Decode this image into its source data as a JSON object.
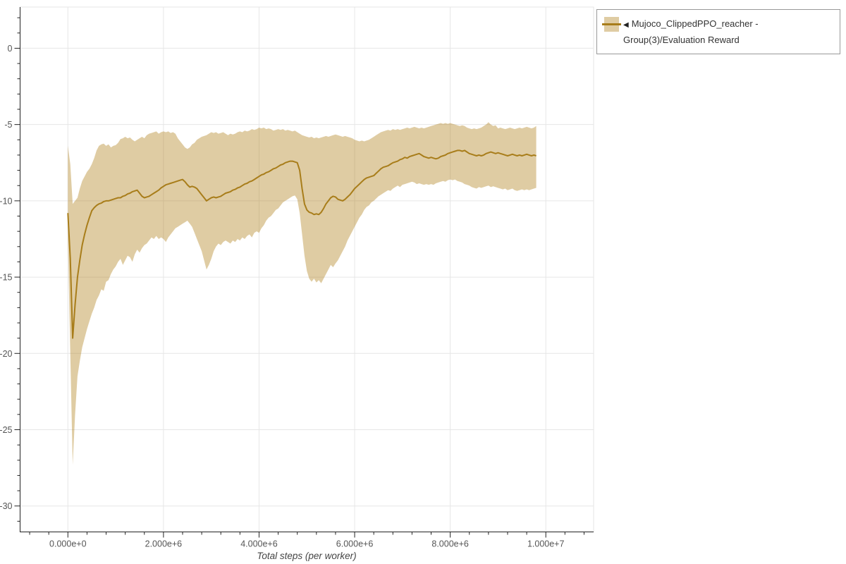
{
  "legend": {
    "toggle_icon": "◀",
    "label": "Mujoco_ClippedPPO_reacher - Group(3)/Evaluation Reward",
    "border_color": "#999999",
    "background": "#ffffff",
    "text_color": "#333333"
  },
  "chart_data": {
    "type": "line",
    "title": "",
    "xlabel": "Total steps (per worker)",
    "ylabel": "",
    "grid": true,
    "legend_position": "top-right-outside",
    "colors": {
      "background": "#ffffff",
      "grid": "#e6e6e6",
      "outline": "#e6e6e6",
      "axis_line": "#222222",
      "tick_label": "#555555",
      "axis_title": "#444444"
    },
    "x_axis": {
      "range": [
        -1000000,
        11000000
      ],
      "major_ticks": [
        0,
        2000000,
        4000000,
        6000000,
        8000000,
        10000000
      ],
      "tick_labels": [
        "0.000e+0",
        "2.000e+6",
        "4.000e+6",
        "6.000e+6",
        "8.000e+6",
        "1.000e+7"
      ],
      "major_step": 2000000,
      "minor_step": 400000
    },
    "y_axis": {
      "range": [
        -31.7,
        2.7
      ],
      "major_ticks": [
        0,
        -5,
        -10,
        -15,
        -20,
        -25,
        -30
      ],
      "tick_labels": [
        "0",
        "-5",
        "-10",
        "-15",
        "-20",
        "-25",
        "-30"
      ],
      "minor_step": 1
    },
    "series": [
      {
        "name": "Mujoco_ClippedPPO_reacher - Group(3)/Evaluation Reward",
        "line_color": "#a87d1a",
        "band_color": "rgba(176,128,24,0.40)",
        "x_start": 0,
        "x_step": 50000,
        "mean": [
          -10.8,
          -13.8,
          -19.0,
          -16.8,
          -15.0,
          -13.9,
          -12.9,
          -12.2,
          -11.6,
          -11.1,
          -10.65,
          -10.45,
          -10.3,
          -10.2,
          -10.15,
          -10.05,
          -10.0,
          -10.0,
          -9.95,
          -9.9,
          -9.85,
          -9.8,
          -9.8,
          -9.7,
          -9.65,
          -9.55,
          -9.5,
          -9.4,
          -9.35,
          -9.3,
          -9.5,
          -9.7,
          -9.8,
          -9.75,
          -9.7,
          -9.6,
          -9.5,
          -9.4,
          -9.3,
          -9.15,
          -9.05,
          -8.95,
          -8.9,
          -8.85,
          -8.8,
          -8.75,
          -8.7,
          -8.65,
          -8.6,
          -8.75,
          -8.95,
          -9.1,
          -9.05,
          -9.1,
          -9.2,
          -9.4,
          -9.6,
          -9.8,
          -10.0,
          -9.9,
          -9.8,
          -9.75,
          -9.8,
          -9.75,
          -9.7,
          -9.6,
          -9.5,
          -9.45,
          -9.4,
          -9.3,
          -9.25,
          -9.15,
          -9.1,
          -9.0,
          -8.9,
          -8.85,
          -8.75,
          -8.7,
          -8.6,
          -8.5,
          -8.4,
          -8.3,
          -8.25,
          -8.15,
          -8.1,
          -8.0,
          -7.9,
          -7.85,
          -7.75,
          -7.65,
          -7.6,
          -7.5,
          -7.45,
          -7.4,
          -7.4,
          -7.45,
          -7.5,
          -8.0,
          -9.2,
          -10.2,
          -10.6,
          -10.75,
          -10.8,
          -10.9,
          -10.85,
          -10.9,
          -10.75,
          -10.5,
          -10.2,
          -10.0,
          -9.8,
          -9.7,
          -9.75,
          -9.9,
          -9.95,
          -10.0,
          -9.9,
          -9.75,
          -9.6,
          -9.4,
          -9.2,
          -9.05,
          -8.9,
          -8.75,
          -8.6,
          -8.5,
          -8.45,
          -8.4,
          -8.35,
          -8.2,
          -8.05,
          -7.9,
          -7.8,
          -7.75,
          -7.7,
          -7.6,
          -7.5,
          -7.45,
          -7.4,
          -7.3,
          -7.25,
          -7.15,
          -7.2,
          -7.1,
          -7.05,
          -7.0,
          -6.95,
          -6.9,
          -7.0,
          -7.1,
          -7.15,
          -7.2,
          -7.15,
          -7.2,
          -7.25,
          -7.2,
          -7.1,
          -7.05,
          -7.0,
          -6.9,
          -6.85,
          -6.8,
          -6.75,
          -6.7,
          -6.7,
          -6.75,
          -6.7,
          -6.8,
          -6.9,
          -6.95,
          -7.0,
          -7.05,
          -7.0,
          -7.05,
          -7.0,
          -6.9,
          -6.85,
          -6.8,
          -6.85,
          -6.9,
          -6.85,
          -6.9,
          -6.95,
          -7.0,
          -7.05,
          -7.0,
          -6.95,
          -7.0,
          -7.05,
          -7.0,
          -7.05,
          -7.0,
          -6.95,
          -7.0,
          -7.05,
          -7.0,
          -7.05
        ],
        "upper": [
          -6.4,
          -7.6,
          -10.2,
          -10.0,
          -9.8,
          -9.2,
          -8.7,
          -8.4,
          -8.1,
          -7.9,
          -7.6,
          -7.2,
          -6.7,
          -6.4,
          -6.3,
          -6.25,
          -6.4,
          -6.3,
          -6.5,
          -6.4,
          -6.35,
          -6.2,
          -5.95,
          -5.9,
          -5.8,
          -5.9,
          -5.85,
          -6.0,
          -6.1,
          -6.0,
          -5.9,
          -5.8,
          -5.9,
          -5.7,
          -5.6,
          -5.55,
          -5.5,
          -5.45,
          -5.6,
          -5.5,
          -5.45,
          -5.5,
          -5.45,
          -5.55,
          -5.5,
          -5.6,
          -5.9,
          -6.1,
          -6.3,
          -6.5,
          -6.6,
          -6.5,
          -6.3,
          -6.2,
          -6.0,
          -5.9,
          -5.8,
          -5.75,
          -5.7,
          -5.6,
          -5.5,
          -5.55,
          -5.5,
          -5.6,
          -5.55,
          -5.5,
          -5.6,
          -5.7,
          -5.6,
          -5.65,
          -5.6,
          -5.5,
          -5.45,
          -5.5,
          -5.4,
          -5.45,
          -5.4,
          -5.3,
          -5.35,
          -5.3,
          -5.2,
          -5.25,
          -5.2,
          -5.3,
          -5.25,
          -5.3,
          -5.4,
          -5.35,
          -5.3,
          -5.35,
          -5.3,
          -5.4,
          -5.35,
          -5.4,
          -5.45,
          -5.4,
          -5.5,
          -5.6,
          -5.7,
          -5.75,
          -5.8,
          -5.85,
          -5.8,
          -5.9,
          -5.85,
          -5.9,
          -5.85,
          -5.8,
          -5.75,
          -5.8,
          -5.75,
          -5.7,
          -5.65,
          -5.7,
          -5.75,
          -5.8,
          -5.75,
          -5.8,
          -5.85,
          -5.9,
          -6.0,
          -6.05,
          -6.1,
          -6.05,
          -6.1,
          -6.05,
          -6.0,
          -5.9,
          -5.8,
          -5.7,
          -5.6,
          -5.5,
          -5.45,
          -5.4,
          -5.35,
          -5.4,
          -5.3,
          -5.35,
          -5.3,
          -5.35,
          -5.3,
          -5.25,
          -5.2,
          -5.25,
          -5.2,
          -5.15,
          -5.2,
          -5.25,
          -5.2,
          -5.25,
          -5.2,
          -5.15,
          -5.1,
          -5.05,
          -5.0,
          -4.95,
          -4.9,
          -4.95,
          -4.9,
          -4.95,
          -4.9,
          -4.95,
          -5.0,
          -5.05,
          -5.1,
          -5.05,
          -5.1,
          -5.2,
          -5.25,
          -5.3,
          -5.25,
          -5.3,
          -5.25,
          -5.2,
          -5.1,
          -5.0,
          -4.85,
          -5.0,
          -5.1,
          -5.05,
          -5.25,
          -5.2,
          -5.25,
          -5.3,
          -5.25,
          -5.2,
          -5.25,
          -5.3,
          -5.25,
          -5.2,
          -5.25,
          -5.2,
          -5.15,
          -5.2,
          -5.25,
          -5.2,
          -5.1
        ],
        "lower": [
          -12.5,
          -20.0,
          -27.3,
          -24.0,
          -21.5,
          -20.5,
          -19.6,
          -19.0,
          -18.4,
          -17.9,
          -17.4,
          -17.0,
          -16.5,
          -16.2,
          -15.8,
          -15.9,
          -15.3,
          -15.2,
          -14.8,
          -14.5,
          -14.3,
          -14.0,
          -13.8,
          -14.2,
          -13.9,
          -13.6,
          -13.7,
          -14.0,
          -13.5,
          -13.2,
          -13.4,
          -13.1,
          -12.9,
          -12.8,
          -12.6,
          -12.4,
          -12.5,
          -12.3,
          -12.5,
          -12.4,
          -12.5,
          -12.7,
          -12.4,
          -12.2,
          -12.0,
          -11.8,
          -11.7,
          -11.6,
          -11.5,
          -11.4,
          -11.3,
          -11.5,
          -11.7,
          -12.1,
          -12.5,
          -12.9,
          -13.3,
          -13.9,
          -14.5,
          -14.2,
          -13.8,
          -13.3,
          -13.0,
          -12.8,
          -12.9,
          -12.7,
          -12.6,
          -12.7,
          -12.8,
          -12.6,
          -12.7,
          -12.5,
          -12.6,
          -12.4,
          -12.5,
          -12.3,
          -12.2,
          -12.4,
          -12.1,
          -12.0,
          -12.1,
          -11.8,
          -11.6,
          -11.3,
          -11.1,
          -11.0,
          -10.8,
          -10.6,
          -10.5,
          -10.3,
          -10.1,
          -10.0,
          -9.9,
          -9.8,
          -9.7,
          -9.65,
          -9.9,
          -10.8,
          -12.2,
          -13.6,
          -14.6,
          -15.1,
          -15.3,
          -15.1,
          -15.35,
          -15.2,
          -15.4,
          -15.1,
          -14.8,
          -14.5,
          -14.2,
          -14.35,
          -14.1,
          -13.9,
          -13.6,
          -13.3,
          -13.0,
          -12.6,
          -12.3,
          -12.0,
          -11.7,
          -11.4,
          -11.1,
          -10.9,
          -10.6,
          -10.4,
          -10.3,
          -10.1,
          -10.0,
          -9.85,
          -9.7,
          -9.6,
          -9.5,
          -9.4,
          -9.3,
          -9.35,
          -9.2,
          -9.1,
          -9.0,
          -9.1,
          -8.95,
          -8.9,
          -8.85,
          -8.8,
          -8.75,
          -8.8,
          -8.9,
          -8.85,
          -8.9,
          -8.95,
          -8.9,
          -8.95,
          -8.9,
          -8.95,
          -8.85,
          -8.8,
          -8.75,
          -8.7,
          -8.75,
          -8.65,
          -8.6,
          -8.65,
          -8.6,
          -8.7,
          -8.75,
          -8.8,
          -8.9,
          -8.95,
          -9.0,
          -9.1,
          -9.15,
          -9.2,
          -9.1,
          -9.15,
          -9.1,
          -9.05,
          -9.0,
          -9.1,
          -9.05,
          -9.1,
          -9.15,
          -9.2,
          -9.25,
          -9.2,
          -9.3,
          -9.25,
          -9.2,
          -9.3,
          -9.35,
          -9.3,
          -9.25,
          -9.3,
          -9.25,
          -9.3,
          -9.25,
          -9.2,
          -9.15
        ]
      }
    ]
  }
}
